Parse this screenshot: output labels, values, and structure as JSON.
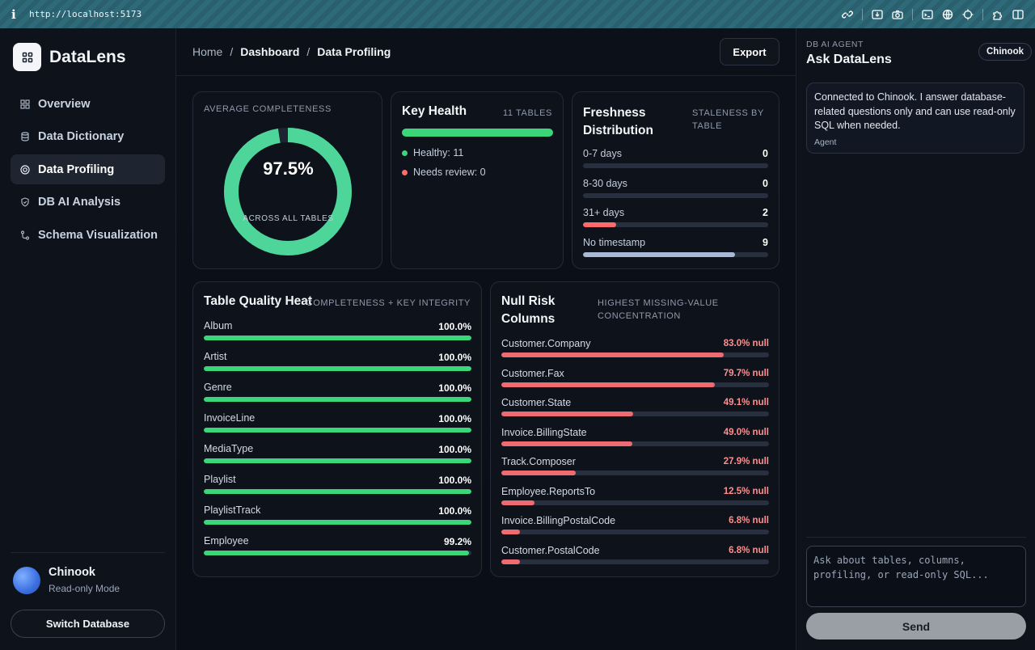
{
  "browser": {
    "url": "http://localhost:5173"
  },
  "sidebar": {
    "brand": "DataLens",
    "items": [
      {
        "label": "Overview",
        "icon": "grid-icon",
        "active": false
      },
      {
        "label": "Data Dictionary",
        "icon": "database-icon",
        "active": false
      },
      {
        "label": "Data Profiling",
        "icon": "target-icon",
        "active": true
      },
      {
        "label": "DB AI Analysis",
        "icon": "shield-icon",
        "active": false
      },
      {
        "label": "Schema Visualization",
        "icon": "schema-icon",
        "active": false
      }
    ],
    "database": {
      "name": "Chinook",
      "mode": "Read-only Mode"
    },
    "switch_label": "Switch Database"
  },
  "header": {
    "breadcrumb": [
      "Home",
      "Dashboard",
      "Data Profiling"
    ],
    "separator": "/",
    "export_label": "Export"
  },
  "completeness": {
    "label": "Average Completeness",
    "value": "97.5%",
    "percent": 97.5,
    "caption": "Across all tables",
    "color": "#4ed69a"
  },
  "key_health": {
    "title": "Key Health",
    "subtitle": "11 Tables",
    "healthy_label": "Healthy: 11",
    "review_label": "Needs review: 0",
    "healthy_color": "#3bd67a",
    "review_color": "#ff6b6b"
  },
  "freshness": {
    "title": "Freshness Distribution",
    "subtitle": "Staleness by table",
    "rows": [
      {
        "label": "0-7 days",
        "value": "0",
        "fraction": 0,
        "color": "#4b5566"
      },
      {
        "label": "8-30 days",
        "value": "0",
        "fraction": 0,
        "color": "#4b5566"
      },
      {
        "label": "31+ days",
        "value": "2",
        "fraction": 0.18,
        "color": "#ff6b6b"
      },
      {
        "label": "No timestamp",
        "value": "9",
        "fraction": 0.82,
        "color": "#a8b8d6"
      }
    ]
  },
  "quality": {
    "title": "Table Quality Heat",
    "subtitle": "Completeness + key integrity",
    "rows": [
      {
        "label": "Album",
        "value": "100.0%",
        "fraction": 1.0
      },
      {
        "label": "Artist",
        "value": "100.0%",
        "fraction": 1.0
      },
      {
        "label": "Genre",
        "value": "100.0%",
        "fraction": 1.0
      },
      {
        "label": "InvoiceLine",
        "value": "100.0%",
        "fraction": 1.0
      },
      {
        "label": "MediaType",
        "value": "100.0%",
        "fraction": 1.0
      },
      {
        "label": "Playlist",
        "value": "100.0%",
        "fraction": 1.0
      },
      {
        "label": "PlaylistTrack",
        "value": "100.0%",
        "fraction": 1.0
      },
      {
        "label": "Employee",
        "value": "99.2%",
        "fraction": 0.992
      }
    ],
    "color": "#3bd67a"
  },
  "null_risk": {
    "title": "Null Risk Columns",
    "subtitle": "Highest missing-value concentration",
    "rows": [
      {
        "label": "Customer.Company",
        "value": "83.0% null",
        "fraction": 0.83
      },
      {
        "label": "Customer.Fax",
        "value": "79.7% null",
        "fraction": 0.797
      },
      {
        "label": "Customer.State",
        "value": "49.1% null",
        "fraction": 0.491
      },
      {
        "label": "Invoice.BillingState",
        "value": "49.0% null",
        "fraction": 0.49
      },
      {
        "label": "Track.Composer",
        "value": "27.9% null",
        "fraction": 0.279
      },
      {
        "label": "Employee.ReportsTo",
        "value": "12.5% null",
        "fraction": 0.125
      },
      {
        "label": "Invoice.BillingPostalCode",
        "value": "6.8% null",
        "fraction": 0.068
      },
      {
        "label": "Customer.PostalCode",
        "value": "6.8% null",
        "fraction": 0.068
      }
    ],
    "color": "#ef6b72"
  },
  "agent": {
    "eyebrow": "DB AI Agent",
    "title": "Ask DataLens",
    "badge": "Chinook",
    "message": "Connected to Chinook. I answer database-related questions only and can use read-only SQL when needed.",
    "role": "Agent",
    "placeholder": "Ask about tables, columns, profiling, or read-only SQL...",
    "send_label": "Send"
  }
}
